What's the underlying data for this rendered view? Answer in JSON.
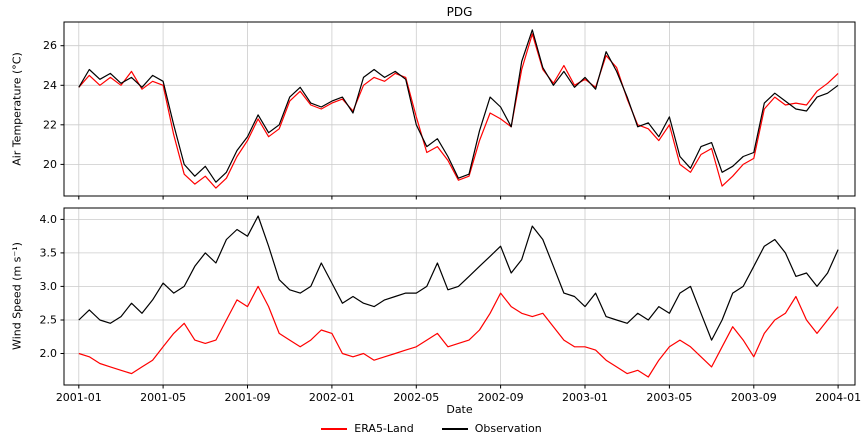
{
  "title": "PDG",
  "xlabel": "Date",
  "legend": {
    "items": [
      {
        "label": "ERA5-Land",
        "color": "#ff0000"
      },
      {
        "label": "Observation",
        "color": "#000000"
      }
    ]
  },
  "chart_data": [
    {
      "type": "line",
      "title": "PDG",
      "ylabel": "Air Temperature (°C)",
      "ylim": [
        18.4,
        27.2
      ],
      "yticks": [
        20,
        22,
        24,
        26
      ],
      "ytick_labels": [
        "20",
        "22",
        "24",
        "26"
      ],
      "xlim": [
        -0.7,
        36.8
      ],
      "xticks": [
        0,
        4,
        8,
        12,
        16,
        20,
        24,
        28,
        32,
        36
      ],
      "xtick_labels": [
        "2001-01",
        "2001-05",
        "2001-09",
        "2002-01",
        "2002-05",
        "2002-09",
        "2003-01",
        "2003-05",
        "2003-09",
        "2004-01"
      ],
      "x_unit": "months since 2001-01",
      "grid": true,
      "legend_position": "bottom center",
      "x": [
        0,
        0.5,
        1,
        1.5,
        2,
        2.5,
        3,
        3.5,
        4,
        4.5,
        5,
        5.5,
        6,
        6.5,
        7,
        7.5,
        8,
        8.5,
        9,
        9.5,
        10,
        10.5,
        11,
        11.5,
        12,
        12.5,
        13,
        13.5,
        14,
        14.5,
        15,
        15.5,
        16,
        16.5,
        17,
        17.5,
        18,
        18.5,
        19,
        19.5,
        20,
        20.5,
        21,
        21.5,
        22,
        22.5,
        23,
        23.5,
        24,
        24.5,
        25,
        25.5,
        26,
        26.5,
        27,
        27.5,
        28,
        28.5,
        29,
        29.5,
        30,
        30.5,
        31,
        31.5,
        32,
        32.5,
        33,
        33.5,
        34,
        34.5,
        35,
        35.5,
        36
      ],
      "series": [
        {
          "name": "ERA5-Land",
          "color": "#ff0000",
          "y": [
            23.9,
            24.5,
            24.0,
            24.4,
            24.0,
            24.7,
            23.8,
            24.2,
            24.0,
            21.5,
            19.5,
            19.0,
            19.4,
            18.8,
            19.3,
            20.4,
            21.2,
            22.3,
            21.4,
            21.8,
            23.2,
            23.7,
            23.0,
            22.8,
            23.1,
            23.3,
            22.7,
            24.0,
            24.4,
            24.2,
            24.6,
            24.4,
            22.4,
            20.6,
            20.9,
            20.2,
            19.2,
            19.4,
            21.2,
            22.6,
            22.3,
            21.9,
            24.8,
            26.6,
            24.8,
            24.1,
            25.0,
            24.0,
            24.3,
            23.9,
            25.5,
            24.9,
            23.3,
            22.0,
            21.8,
            21.2,
            22.0,
            20.0,
            19.6,
            20.5,
            20.8,
            18.9,
            19.4,
            20.0,
            20.3,
            22.8,
            23.4,
            23.0,
            23.1,
            23.0,
            23.7,
            24.1,
            24.6
          ]
        },
        {
          "name": "Observation",
          "color": "#000000",
          "y": [
            23.9,
            24.8,
            24.3,
            24.6,
            24.1,
            24.4,
            23.9,
            24.5,
            24.2,
            22.0,
            20.0,
            19.4,
            19.9,
            19.1,
            19.6,
            20.7,
            21.4,
            22.5,
            21.6,
            22.0,
            23.4,
            23.9,
            23.1,
            22.9,
            23.2,
            23.4,
            22.6,
            24.4,
            24.8,
            24.4,
            24.7,
            24.3,
            22.0,
            20.9,
            21.3,
            20.4,
            19.3,
            19.5,
            21.7,
            23.4,
            22.9,
            21.9,
            25.2,
            26.8,
            24.9,
            24.0,
            24.7,
            23.9,
            24.4,
            23.8,
            25.7,
            24.7,
            23.4,
            21.9,
            22.1,
            21.4,
            22.4,
            20.4,
            19.8,
            20.9,
            21.1,
            19.6,
            19.9,
            20.4,
            20.6,
            23.1,
            23.6,
            23.2,
            22.8,
            22.7,
            23.4,
            23.6,
            24.0
          ]
        }
      ]
    },
    {
      "type": "line",
      "ylabel": "Wind Speed (m s⁻¹)",
      "ylim": [
        1.53,
        4.17
      ],
      "yticks": [
        2.0,
        2.5,
        3.0,
        3.5,
        4.0
      ],
      "ytick_labels": [
        "2.0",
        "2.5",
        "3.0",
        "3.5",
        "4.0"
      ],
      "xlim": [
        -0.7,
        36.8
      ],
      "xticks": [
        0,
        4,
        8,
        12,
        16,
        20,
        24,
        28,
        32,
        36
      ],
      "xtick_labels": [
        "2001-01",
        "2001-05",
        "2001-09",
        "2002-01",
        "2002-05",
        "2002-09",
        "2003-01",
        "2003-05",
        "2003-09",
        "2004-01"
      ],
      "x_unit": "months since 2001-01",
      "grid": true,
      "x": [
        0,
        0.5,
        1,
        1.5,
        2,
        2.5,
        3,
        3.5,
        4,
        4.5,
        5,
        5.5,
        6,
        6.5,
        7,
        7.5,
        8,
        8.5,
        9,
        9.5,
        10,
        10.5,
        11,
        11.5,
        12,
        12.5,
        13,
        13.5,
        14,
        14.5,
        15,
        15.5,
        16,
        16.5,
        17,
        17.5,
        18,
        18.5,
        19,
        19.5,
        20,
        20.5,
        21,
        21.5,
        22,
        22.5,
        23,
        23.5,
        24,
        24.5,
        25,
        25.5,
        26,
        26.5,
        27,
        27.5,
        28,
        28.5,
        29,
        29.5,
        30,
        30.5,
        31,
        31.5,
        32,
        32.5,
        33,
        33.5,
        34,
        34.5,
        35,
        35.5,
        36
      ],
      "series": [
        {
          "name": "ERA5-Land",
          "color": "#ff0000",
          "y": [
            2.0,
            1.95,
            1.85,
            1.8,
            1.75,
            1.7,
            1.8,
            1.9,
            2.1,
            2.3,
            2.45,
            2.2,
            2.15,
            2.2,
            2.5,
            2.8,
            2.7,
            3.0,
            2.7,
            2.3,
            2.2,
            2.1,
            2.2,
            2.35,
            2.3,
            2.0,
            1.95,
            2.0,
            1.9,
            1.95,
            2.0,
            2.05,
            2.1,
            2.2,
            2.3,
            2.1,
            2.15,
            2.2,
            2.35,
            2.6,
            2.9,
            2.7,
            2.6,
            2.55,
            2.6,
            2.4,
            2.2,
            2.1,
            2.1,
            2.05,
            1.9,
            1.8,
            1.7,
            1.75,
            1.65,
            1.9,
            2.1,
            2.2,
            2.1,
            1.95,
            1.8,
            2.1,
            2.4,
            2.2,
            1.95,
            2.3,
            2.5,
            2.6,
            2.85,
            2.5,
            2.3,
            2.5,
            2.7
          ]
        },
        {
          "name": "Observation",
          "color": "#000000",
          "y": [
            2.5,
            2.65,
            2.5,
            2.45,
            2.55,
            2.75,
            2.6,
            2.8,
            3.05,
            2.9,
            3.0,
            3.3,
            3.5,
            3.35,
            3.7,
            3.85,
            3.75,
            4.05,
            3.6,
            3.1,
            2.95,
            2.9,
            3.0,
            3.35,
            3.05,
            2.75,
            2.85,
            2.75,
            2.7,
            2.8,
            2.85,
            2.9,
            2.9,
            3.0,
            3.35,
            2.95,
            3.0,
            3.15,
            3.3,
            3.45,
            3.6,
            3.2,
            3.4,
            3.9,
            3.7,
            3.3,
            2.9,
            2.85,
            2.7,
            2.9,
            2.55,
            2.5,
            2.45,
            2.6,
            2.5,
            2.7,
            2.6,
            2.9,
            3.0,
            2.6,
            2.2,
            2.5,
            2.9,
            3.0,
            3.3,
            3.6,
            3.7,
            3.5,
            3.15,
            3.2,
            3.0,
            3.2,
            3.55
          ]
        }
      ]
    }
  ]
}
